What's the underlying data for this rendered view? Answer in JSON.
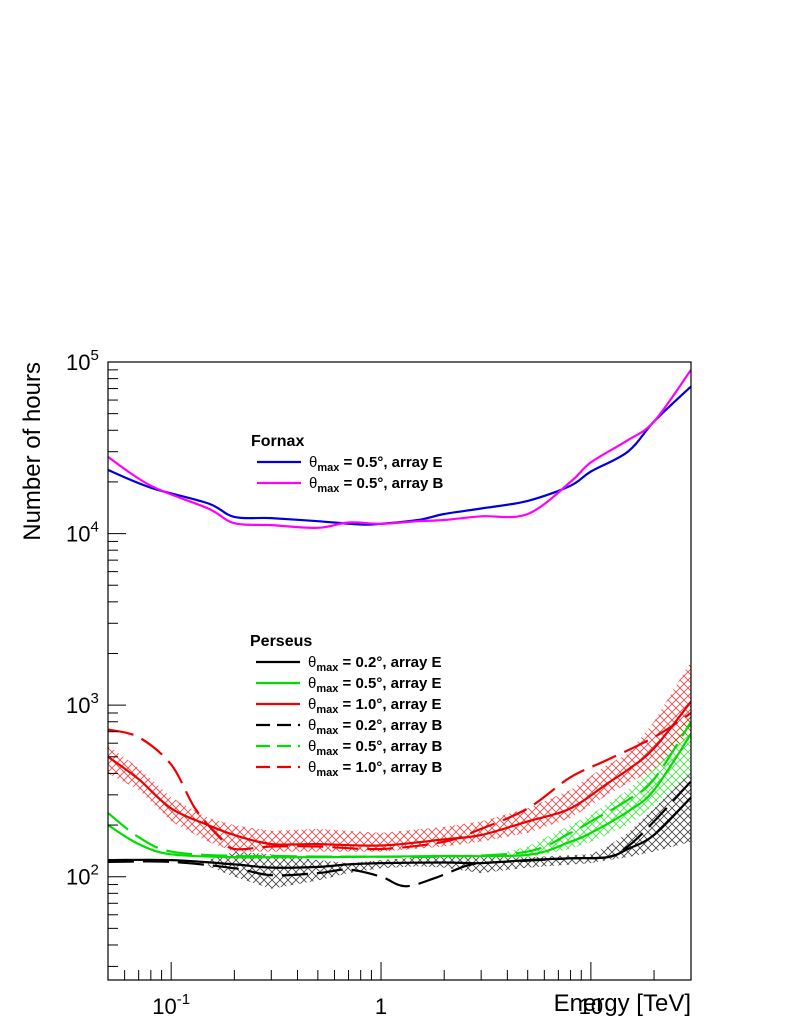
{
  "chart_data": {
    "type": "line",
    "xlabel": "Energy [TeV]",
    "ylabel": "Number of hours",
    "xscale": "log",
    "yscale": "log",
    "xlim": [
      0.05,
      30
    ],
    "ylim": [
      25,
      100000
    ],
    "xticks": [
      {
        "value": 0.1,
        "base": "10",
        "exp": "-1"
      },
      {
        "value": 1,
        "base": "1",
        "exp": ""
      },
      {
        "value": 10,
        "base": "10",
        "exp": ""
      }
    ],
    "yticks": [
      {
        "value": 100,
        "base": "10",
        "exp": "2"
      },
      {
        "value": 1000,
        "base": "10",
        "exp": "3"
      },
      {
        "value": 10000,
        "base": "10",
        "exp": "4"
      },
      {
        "value": 100000,
        "base": "10",
        "exp": "5"
      }
    ],
    "legends": [
      {
        "title": "Fornax",
        "position": "upper-center",
        "entries": [
          {
            "series": "fornax_E",
            "label": "θ_max = 0.5°, array E",
            "theta": "0.5°",
            "array": "array E",
            "color": "#0000dd",
            "dash": "solid"
          },
          {
            "series": "fornax_B",
            "label": "θ_max = 0.5°, array B",
            "theta": "0.5°",
            "array": "array B",
            "color": "#ff00ff",
            "dash": "solid"
          }
        ]
      },
      {
        "title": "Perseus",
        "position": "center",
        "entries": [
          {
            "series": "perseus_02_E",
            "label": "θ_max = 0.2°, array E",
            "theta": "0.2°",
            "array": "array E",
            "color": "#000000",
            "dash": "solid"
          },
          {
            "series": "perseus_05_E",
            "label": "θ_max = 0.5°, array E",
            "theta": "0.5°",
            "array": "array E",
            "color": "#00dd00",
            "dash": "solid"
          },
          {
            "series": "perseus_10_E",
            "label": "θ_max = 1.0°, array E",
            "theta": "1.0°",
            "array": "array E",
            "color": "#ee0000",
            "dash": "solid"
          },
          {
            "series": "perseus_02_B",
            "label": "θ_max = 0.2°, array B",
            "theta": "0.2°",
            "array": "array B",
            "color": "#000000",
            "dash": "dashed"
          },
          {
            "series": "perseus_05_B",
            "label": "θ_max = 0.5°, array B",
            "theta": "0.5°",
            "array": "array B",
            "color": "#00dd00",
            "dash": "dashed"
          },
          {
            "series": "perseus_10_B",
            "label": "θ_max = 1.0°, array B",
            "theta": "1.0°",
            "array": "array B",
            "color": "#ee0000",
            "dash": "dashed"
          }
        ]
      }
    ],
    "series": [
      {
        "id": "fornax_E",
        "color": "#0000dd",
        "dash": "solid",
        "x": [
          0.05,
          0.08,
          0.15,
          0.2,
          0.3,
          0.5,
          0.8,
          1.0,
          1.5,
          2,
          3,
          5,
          8,
          10,
          15,
          20,
          30
        ],
        "y": [
          23500,
          18500,
          15000,
          12500,
          12300,
          11800,
          11300,
          11400,
          12000,
          13000,
          14000,
          15500,
          19000,
          23000,
          30000,
          45000,
          72000
        ]
      },
      {
        "id": "fornax_B",
        "color": "#ff00ff",
        "dash": "solid",
        "x": [
          0.05,
          0.08,
          0.15,
          0.2,
          0.3,
          0.5,
          0.7,
          1.0,
          1.5,
          2,
          3,
          5,
          8,
          10,
          15,
          20,
          30
        ],
        "y": [
          28000,
          19000,
          14000,
          11500,
          11200,
          10800,
          11600,
          11400,
          11800,
          12000,
          12600,
          13000,
          20000,
          26000,
          35000,
          45000,
          90000
        ]
      },
      {
        "id": "perseus_02_E",
        "color": "#000000",
        "dash": "solid",
        "x": [
          0.05,
          0.1,
          0.2,
          0.3,
          0.5,
          0.7,
          1,
          2,
          3,
          5,
          8,
          12,
          15,
          20,
          30
        ],
        "y": [
          125,
          125,
          118,
          113,
          114,
          118,
          120,
          121,
          120,
          125,
          128,
          130,
          145,
          175,
          290
        ]
      },
      {
        "id": "perseus_05_E",
        "color": "#00dd00",
        "dash": "solid",
        "x": [
          0.05,
          0.07,
          0.1,
          0.2,
          0.3,
          0.5,
          1,
          2,
          5,
          8,
          10,
          15,
          20,
          30
        ],
        "y": [
          200,
          155,
          135,
          130,
          130,
          130,
          131,
          132,
          134,
          160,
          180,
          240,
          320,
          680
        ]
      },
      {
        "id": "perseus_10_E",
        "color": "#ee0000",
        "dash": "solid",
        "x": [
          0.05,
          0.07,
          0.1,
          0.15,
          0.2,
          0.3,
          0.5,
          1,
          2,
          3,
          5,
          8,
          12,
          15,
          20,
          30
        ],
        "y": [
          500,
          370,
          250,
          200,
          175,
          155,
          155,
          152,
          165,
          175,
          210,
          250,
          350,
          420,
          560,
          1050
        ]
      },
      {
        "id": "perseus_02_B",
        "color": "#000000",
        "dash": "dashed",
        "x": [
          0.05,
          0.1,
          0.2,
          0.3,
          0.5,
          0.7,
          1,
          1.3,
          1.8,
          2.5,
          3,
          5,
          8,
          12,
          15,
          20,
          30
        ],
        "y": [
          122,
          122,
          112,
          102,
          105,
          110,
          100,
          88,
          98,
          115,
          120,
          124,
          128,
          130,
          150,
          210,
          360
        ]
      },
      {
        "id": "perseus_05_B",
        "color": "#00dd00",
        "dash": "dashed",
        "x": [
          0.05,
          0.07,
          0.1,
          0.2,
          0.3,
          0.5,
          1,
          2,
          5,
          8,
          10,
          15,
          20,
          30
        ],
        "y": [
          235,
          170,
          140,
          132,
          132,
          131,
          131,
          131,
          140,
          180,
          210,
          280,
          370,
          800
        ]
      },
      {
        "id": "perseus_10_B",
        "color": "#ee0000",
        "dash": "dashed",
        "x": [
          0.05,
          0.07,
          0.1,
          0.13,
          0.17,
          0.2,
          0.3,
          0.5,
          1,
          2,
          3,
          5,
          8,
          12,
          20,
          30
        ],
        "y": [
          720,
          650,
          450,
          250,
          170,
          145,
          150,
          150,
          145,
          160,
          190,
          250,
          380,
          480,
          650,
          900
        ]
      }
    ],
    "bands": [
      {
        "series": "perseus_02_E",
        "color": "#000000",
        "x": [
          0.15,
          0.2,
          0.3,
          0.5,
          0.7,
          1,
          1.5,
          2,
          3,
          5,
          10,
          12,
          15,
          20,
          30
        ],
        "lo": [
          115,
          100,
          85,
          95,
          105,
          112,
          115,
          113,
          105,
          113,
          120,
          125,
          130,
          140,
          160
        ],
        "hi": [
          125,
          140,
          135,
          125,
          120,
          125,
          130,
          132,
          130,
          130,
          135,
          150,
          180,
          250,
          420
        ]
      },
      {
        "series": "perseus_05_E",
        "color": "#00dd00",
        "x": [
          4,
          5,
          8,
          10,
          15,
          20,
          30
        ],
        "lo": [
          130,
          130,
          145,
          160,
          200,
          260,
          400
        ],
        "hi": [
          140,
          150,
          200,
          230,
          320,
          450,
          900
        ]
      },
      {
        "series": "perseus_10_E",
        "color": "#ee0000",
        "x": [
          0.05,
          0.07,
          0.1,
          0.15,
          0.2,
          0.3,
          0.5,
          0.7,
          1,
          2,
          3,
          5,
          8,
          12,
          15,
          20,
          30
        ],
        "lo": [
          400,
          320,
          210,
          160,
          140,
          140,
          140,
          140,
          140,
          150,
          160,
          180,
          220,
          300,
          350,
          420,
          700
        ],
        "hi": [
          580,
          430,
          290,
          220,
          200,
          185,
          190,
          185,
          180,
          195,
          210,
          250,
          320,
          450,
          520,
          800,
          1800
        ]
      }
    ]
  }
}
